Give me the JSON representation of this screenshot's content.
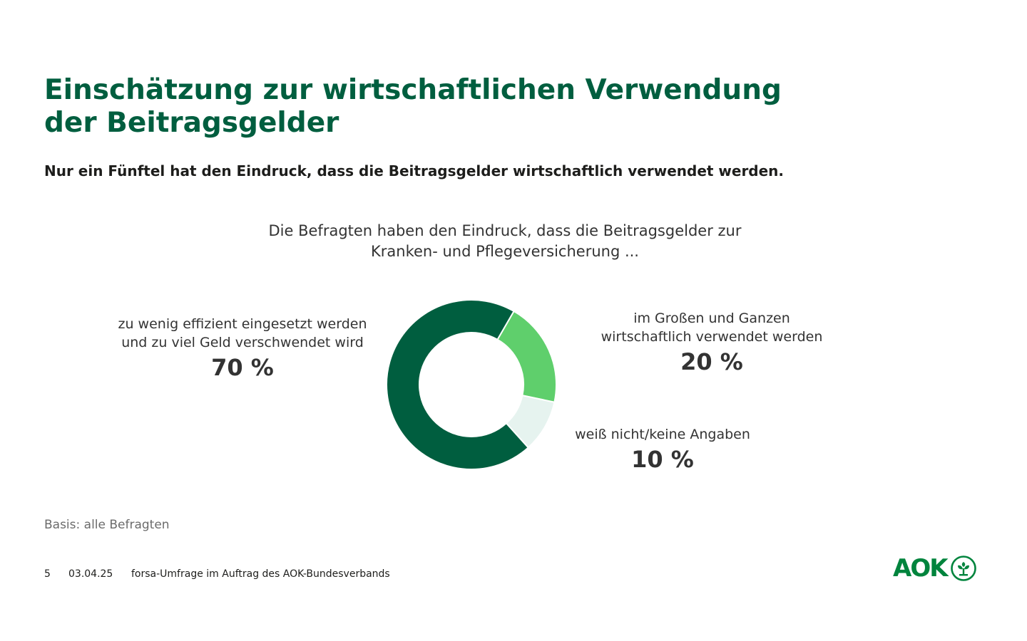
{
  "header": {
    "title_lines": [
      "Einschätzung zur wirtschaftlichen Verwendung",
      "der Beitragsgelder"
    ],
    "subtitle": "Nur ein Fünftel hat den Eindruck, dass die Beitragsgelder wirtschaftlich verwendet werden."
  },
  "question_lines": [
    "Die Befragten haben den Eindruck, dass die Beitragsgelder zur",
    "Kranken- und Pflegeversicherung ..."
  ],
  "chart_data": {
    "type": "pie",
    "donut": true,
    "slices": [
      {
        "label_lines": [
          "im Großen und Ganzen",
          "wirtschaftlich verwendet werden"
        ],
        "value": 20,
        "value_label": "20 %",
        "color": "#5fcf6c"
      },
      {
        "label_lines": [
          "weiß nicht/keine Angaben"
        ],
        "value": 10,
        "value_label": "10 %",
        "color": "#e6f3ef"
      },
      {
        "label_lines": [
          "zu wenig effizient eingesetzt werden",
          "und zu viel Geld verschwendet wird"
        ],
        "value": 70,
        "value_label": "70 %",
        "color": "#005e3f"
      }
    ]
  },
  "basis": "Basis: alle Befragten",
  "footer": {
    "page": "5",
    "date": "03.04.25",
    "source": "forsa-Umfrage im Auftrag des AOK-Bundesverbands"
  },
  "logo": {
    "text": "AOK",
    "icon": "aok-tree-icon",
    "color": "#00843d"
  }
}
